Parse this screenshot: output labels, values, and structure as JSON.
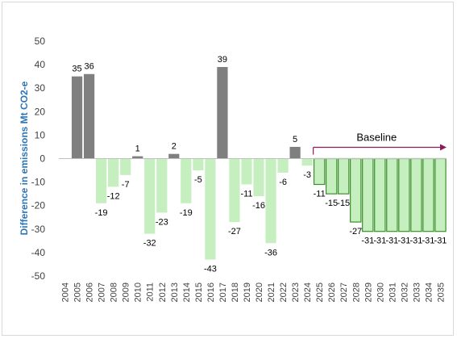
{
  "chart_data": {
    "type": "bar",
    "ylabel": "Difference in emissions Mt CO2-e",
    "xlabel": "",
    "title": "",
    "ylim": [
      -50,
      50
    ],
    "yticks": [
      50,
      40,
      30,
      20,
      10,
      0,
      -10,
      -20,
      -30,
      -40,
      -50
    ],
    "grid": false,
    "categories": [
      "2004",
      "2005",
      "2006",
      "2007",
      "2008",
      "2009",
      "2010",
      "2011",
      "2012",
      "2013",
      "2014",
      "2015",
      "2016",
      "2017",
      "2018",
      "2019",
      "2020",
      "2021",
      "2022",
      "2023",
      "2024",
      "2025",
      "2026",
      "2027",
      "2028",
      "2029",
      "2030",
      "2031",
      "2032",
      "2033",
      "2034",
      "2035"
    ],
    "values": [
      null,
      35,
      36,
      -19,
      -12,
      -7,
      1,
      -32,
      -23,
      2,
      -19,
      -5,
      -43,
      39,
      -27,
      -11,
      -16,
      -36,
      -6,
      5,
      -3,
      -11,
      -15,
      -15,
      -27,
      -31,
      -31,
      -31,
      -31,
      -31,
      -31,
      -31
    ],
    "labels": [
      "",
      "35",
      "36",
      "-19",
      "-12",
      "-7",
      "1",
      "-32",
      "-23",
      "2",
      "-19",
      "-5",
      "-43",
      "39",
      "-27",
      "-11",
      "-16",
      "-36",
      "-6",
      "5",
      "-3",
      "-11",
      "-15",
      "-15",
      "-27",
      "-31",
      "-31",
      "-31",
      "-31",
      "-31",
      "-31",
      "-31"
    ],
    "annotation": {
      "text": "Baseline",
      "from_category": "2025",
      "to_category": "2035",
      "color": "#8b1a5a"
    },
    "colors": {
      "positive_historical": "#7f7f7f",
      "negative_historical": "#c6efc0",
      "projection_fill": "#c6efc0",
      "projection_stroke": "#3a8f2a",
      "axis": "#bfbfbf"
    }
  }
}
